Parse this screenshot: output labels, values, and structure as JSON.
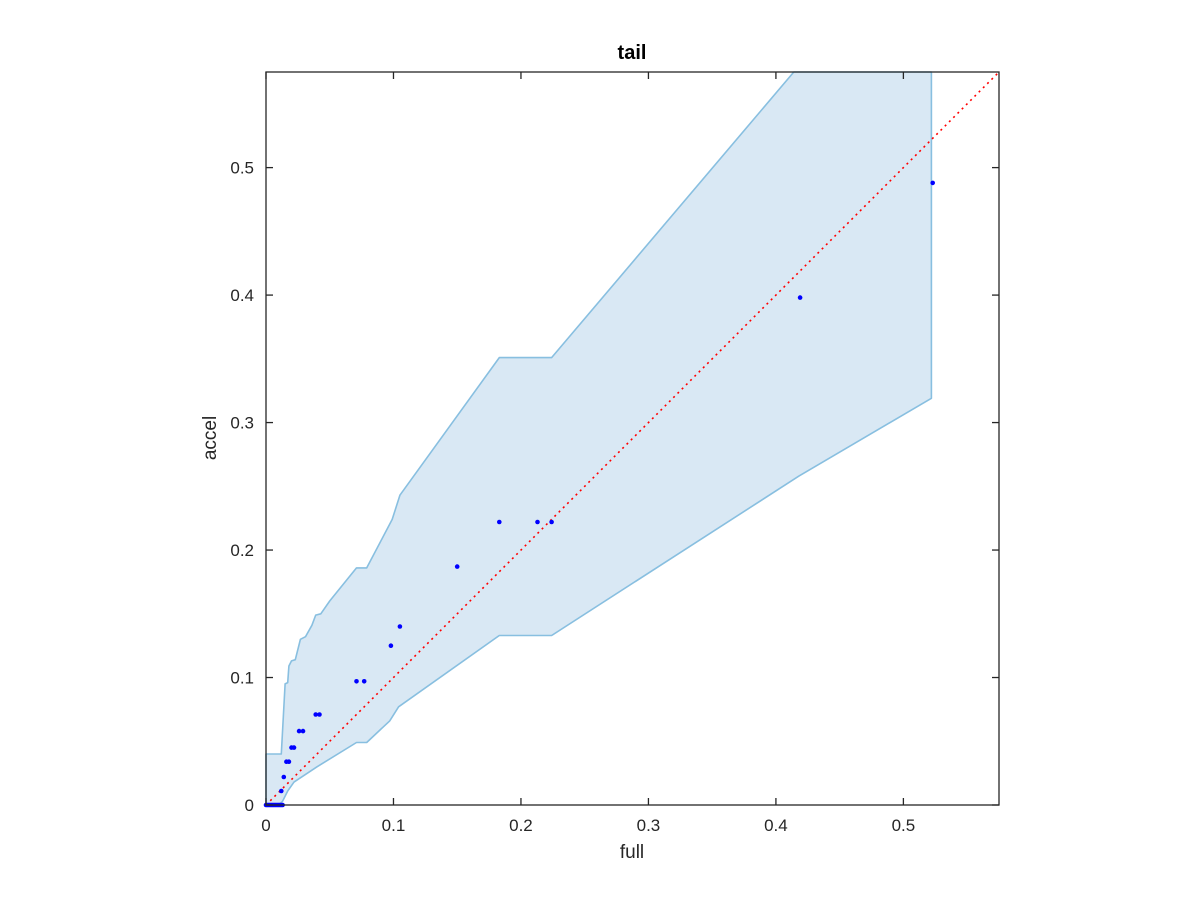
{
  "chart_data": {
    "type": "scatter",
    "title": "tail",
    "xlabel": "full",
    "ylabel": "accel",
    "xlim": [
      0,
      0.575
    ],
    "ylim": [
      0,
      0.575
    ],
    "xticks": [
      0,
      0.1,
      0.2,
      0.3,
      0.4,
      0.5
    ],
    "yticks": [
      0,
      0.1,
      0.2,
      0.3,
      0.4,
      0.5
    ],
    "xtick_labels": [
      "0",
      "0.1",
      "0.2",
      "0.3",
      "0.4",
      "0.5"
    ],
    "ytick_labels": [
      "0",
      "0.1",
      "0.2",
      "0.3",
      "0.4",
      "0.5"
    ],
    "grid": false,
    "colors": {
      "points": "#0000ff",
      "band_fill": "#d9e8f4",
      "band_edge": "#88bfe0",
      "reference_line": "#ff0000",
      "axes": "#262626"
    },
    "band": {
      "upper": [
        [
          0,
          0.04
        ],
        [
          0.012,
          0.04
        ],
        [
          0.015,
          0.095
        ],
        [
          0.017,
          0.096
        ],
        [
          0.018,
          0.109
        ],
        [
          0.02,
          0.113
        ],
        [
          0.023,
          0.114
        ],
        [
          0.027,
          0.13
        ],
        [
          0.031,
          0.132
        ],
        [
          0.036,
          0.141
        ],
        [
          0.039,
          0.149
        ],
        [
          0.043,
          0.15
        ],
        [
          0.05,
          0.16
        ],
        [
          0.071,
          0.186
        ],
        [
          0.079,
          0.186
        ],
        [
          0.099,
          0.224
        ],
        [
          0.105,
          0.243
        ],
        [
          0.183,
          0.351
        ],
        [
          0.224,
          0.351
        ],
        [
          0.414,
          0.575
        ],
        [
          0.522,
          0.575
        ]
      ],
      "lower": [
        [
          0.522,
          0.319
        ],
        [
          0.418,
          0.258
        ],
        [
          0.224,
          0.133
        ],
        [
          0.183,
          0.133
        ],
        [
          0.104,
          0.077
        ],
        [
          0.097,
          0.066
        ],
        [
          0.079,
          0.049
        ],
        [
          0.071,
          0.049
        ],
        [
          0.04,
          0.03
        ],
        [
          0.022,
          0.018
        ],
        [
          0.017,
          0.011
        ],
        [
          0.013,
          0.003
        ],
        [
          0.01,
          0.0
        ],
        [
          0,
          0.0
        ]
      ]
    },
    "reference_line": {
      "x": [
        0,
        0.575
      ],
      "y": [
        0,
        0.575
      ]
    },
    "series": [
      {
        "points": [
          [
            0.0,
            0.0
          ],
          [
            0.001,
            0.0
          ],
          [
            0.002,
            0.0
          ],
          [
            0.003,
            0.0
          ],
          [
            0.004,
            0.0
          ],
          [
            0.005,
            0.0
          ],
          [
            0.006,
            0.0
          ],
          [
            0.007,
            0.0
          ],
          [
            0.008,
            0.0
          ],
          [
            0.009,
            0.0
          ],
          [
            0.01,
            0.0
          ],
          [
            0.011,
            0.0
          ],
          [
            0.012,
            0.0
          ],
          [
            0.013,
            0.0
          ],
          [
            0.012,
            0.011
          ],
          [
            0.014,
            0.022
          ],
          [
            0.016,
            0.034
          ],
          [
            0.018,
            0.034
          ],
          [
            0.02,
            0.045
          ],
          [
            0.022,
            0.045
          ],
          [
            0.026,
            0.058
          ],
          [
            0.029,
            0.058
          ],
          [
            0.039,
            0.071
          ],
          [
            0.042,
            0.071
          ],
          [
            0.071,
            0.097
          ],
          [
            0.077,
            0.097
          ],
          [
            0.098,
            0.125
          ],
          [
            0.105,
            0.14
          ],
          [
            0.15,
            0.187
          ],
          [
            0.183,
            0.222
          ],
          [
            0.213,
            0.222
          ],
          [
            0.224,
            0.222
          ],
          [
            0.419,
            0.398
          ],
          [
            0.523,
            0.488
          ]
        ]
      }
    ]
  }
}
